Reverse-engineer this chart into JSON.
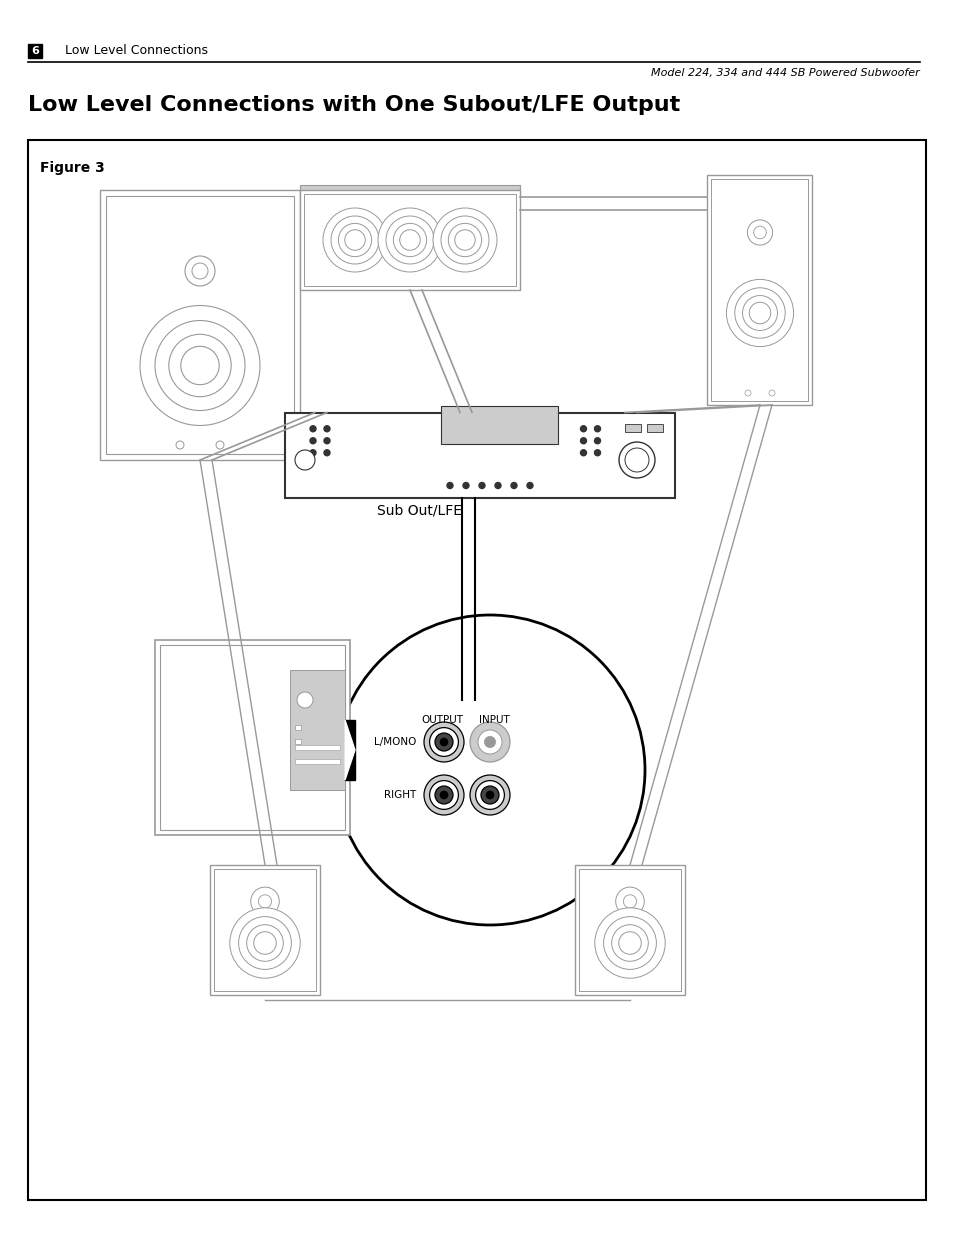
{
  "page_number": "6",
  "header_left": "Low Level Connections",
  "header_right": "Model 224, 334 and 444 SB Powered Subwoofer",
  "title": "Low Level Connections with One Subout/LFE Output",
  "figure_label": "Figure 3",
  "sub_out_lfe_label": "Sub Out/LFE",
  "output_label": "OUTPUT",
  "input_label": "INPUT",
  "lmono_label": "L/MONO",
  "right_label": "RIGHT",
  "bg_color": "#ffffff",
  "box_color": "#333333",
  "line_color": "#555555",
  "gray_light": "#cccccc",
  "gray_mid": "#999999",
  "black": "#000000",
  "dark_gray": "#444444"
}
